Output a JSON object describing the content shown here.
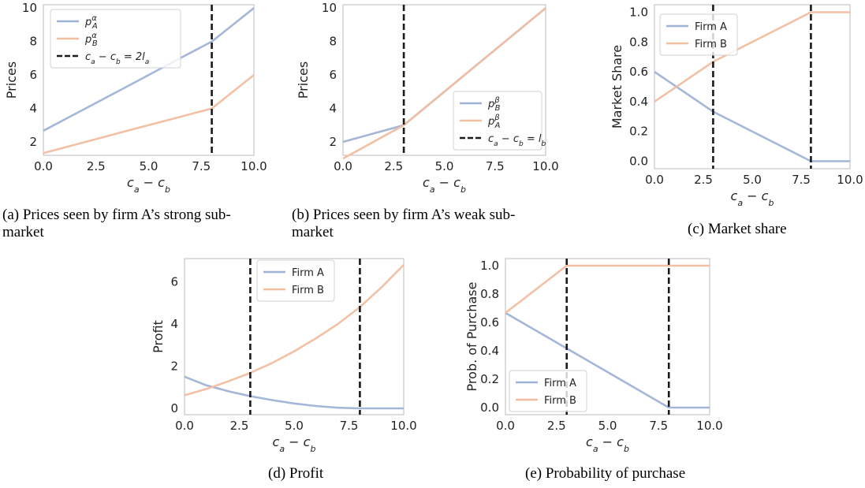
{
  "colors": {
    "firm_a": "#9fb3d6",
    "firm_b": "#f1bea0",
    "threshold": "#1a1a1a"
  },
  "captions": [
    "(a) Prices seen by firm A’s strong sub-",
    "market",
    "(b) Prices seen by firm A’s weak sub-",
    "market",
    "(c) Market share",
    "(d) Profit",
    "(e) Probability of purchase"
  ],
  "chart_data": [
    {
      "type": "line",
      "xlabel": "c_a − c_b",
      "ylabel": "Prices",
      "xlim": [
        0,
        10
      ],
      "ylim": [
        1.2,
        10.2
      ],
      "xticks": [
        "0.0",
        "2.5",
        "5.0",
        "7.5",
        "10.0"
      ],
      "xtick_values": [
        0,
        2.5,
        5,
        7.5,
        10
      ],
      "yticks": [
        "2",
        "4",
        "6",
        "8",
        "10"
      ],
      "ytick_values": [
        2,
        4,
        6,
        8,
        10
      ],
      "legend": "top-left",
      "legend_entries": [
        {
          "symbol": "p",
          "sub": "A",
          "sup": "α",
          "style": "firm_a"
        },
        {
          "symbol": "p",
          "sub": "B",
          "sup": "α",
          "style": "firm_b"
        },
        {
          "label": "c_a − c_b = 2l_a",
          "style": "threshold"
        }
      ],
      "series": [
        {
          "style": "firm_a",
          "x": [
            0,
            2,
            4,
            6,
            8,
            9,
            10
          ],
          "y": [
            2.67,
            4.0,
            5.33,
            6.67,
            8.0,
            9.0,
            10.0
          ]
        },
        {
          "style": "firm_b",
          "x": [
            0,
            2,
            4,
            6,
            8,
            9,
            10
          ],
          "y": [
            1.33,
            2.0,
            2.67,
            3.33,
            4.0,
            5.0,
            6.0
          ]
        }
      ],
      "vlines": [
        8
      ]
    },
    {
      "type": "line",
      "xlabel": "c_a − c_b",
      "ylabel": "Prices",
      "xlim": [
        0,
        10
      ],
      "ylim": [
        1.2,
        10.2
      ],
      "xticks": [
        "0.0",
        "2.5",
        "5.0",
        "7.5",
        "10.0"
      ],
      "xtick_values": [
        0,
        2.5,
        5,
        7.5,
        10
      ],
      "yticks": [
        "2",
        "4",
        "6",
        "8",
        "10"
      ],
      "ytick_values": [
        2,
        4,
        6,
        8,
        10
      ],
      "legend": "lower-right",
      "legend_entries": [
        {
          "symbol": "p",
          "sub": "B",
          "sup": "β",
          "style": "firm_a"
        },
        {
          "symbol": "p",
          "sub": "A",
          "sup": "β",
          "style": "firm_b"
        },
        {
          "label": "c_a − c_b = l_b",
          "style": "threshold"
        }
      ],
      "series": [
        {
          "style": "firm_a",
          "x": [
            0,
            3,
            10
          ],
          "y": [
            2.0,
            3.0,
            10.0
          ]
        },
        {
          "style": "firm_b",
          "x": [
            0,
            3,
            10
          ],
          "y": [
            1.0,
            3.0,
            10.0
          ]
        }
      ],
      "vlines": [
        3
      ]
    },
    {
      "type": "line",
      "xlabel": "c_a − c_b",
      "ylabel": "Market Share",
      "xlim": [
        0,
        10
      ],
      "ylim": [
        -0.05,
        1.05
      ],
      "xticks": [
        "0.0",
        "2.5",
        "5.0",
        "7.5",
        "10.0"
      ],
      "xtick_values": [
        0,
        2.5,
        5,
        7.5,
        10
      ],
      "yticks": [
        "0.0",
        "0.2",
        "0.4",
        "0.6",
        "0.8",
        "1.0"
      ],
      "ytick_values": [
        0,
        0.2,
        0.4,
        0.6,
        0.8,
        1.0
      ],
      "legend": "top-left",
      "legend_entries": [
        {
          "label": "Firm A",
          "style": "firm_a"
        },
        {
          "label": "Firm B",
          "style": "firm_b"
        }
      ],
      "series": [
        {
          "name": "Firm A",
          "style": "firm_a",
          "x": [
            0,
            3,
            8,
            10
          ],
          "y": [
            0.6,
            0.333,
            0.0,
            0.0
          ]
        },
        {
          "name": "Firm B",
          "style": "firm_b",
          "x": [
            0,
            3,
            8,
            10
          ],
          "y": [
            0.4,
            0.667,
            1.0,
            1.0
          ]
        }
      ],
      "vlines": [
        3,
        8
      ]
    },
    {
      "type": "line",
      "xlabel": "c_a − c_b",
      "ylabel": "Profit",
      "xlim": [
        0,
        10
      ],
      "ylim": [
        -0.3,
        7.1
      ],
      "xticks": [
        "0.0",
        "2.5",
        "5.0",
        "7.5",
        "10.0"
      ],
      "xtick_values": [
        0,
        2.5,
        5,
        7.5,
        10
      ],
      "yticks": [
        "0",
        "2",
        "4",
        "6"
      ],
      "ytick_values": [
        0,
        2,
        4,
        6
      ],
      "legend": "top-center",
      "legend_entries": [
        {
          "label": "Firm A",
          "style": "firm_a"
        },
        {
          "label": "Firm B",
          "style": "firm_b"
        }
      ],
      "series": [
        {
          "name": "Firm A",
          "style": "firm_a",
          "x": [
            0,
            1,
            2,
            3,
            4,
            5,
            6,
            7,
            8,
            9,
            10
          ],
          "y": [
            1.5,
            1.09,
            0.81,
            0.58,
            0.39,
            0.23,
            0.11,
            0.03,
            0.0,
            0.0,
            0.0
          ]
        },
        {
          "name": "Firm B",
          "style": "firm_b",
          "x": [
            0,
            1,
            2,
            3,
            4,
            5,
            6,
            7,
            8,
            9,
            10
          ],
          "y": [
            0.62,
            0.92,
            1.28,
            1.68,
            2.15,
            2.7,
            3.32,
            4.0,
            4.8,
            5.75,
            6.8
          ]
        }
      ],
      "vlines": [
        3,
        8
      ]
    },
    {
      "type": "line",
      "xlabel": "c_a − c_b",
      "ylabel": "Prob. of Purchase",
      "xlim": [
        0,
        10
      ],
      "ylim": [
        -0.05,
        1.05
      ],
      "xticks": [
        "0.0",
        "2.5",
        "5.0",
        "7.5",
        "10.0"
      ],
      "xtick_values": [
        0,
        2.5,
        5,
        7.5,
        10
      ],
      "yticks": [
        "0.0",
        "0.2",
        "0.4",
        "0.6",
        "0.8",
        "1.0"
      ],
      "ytick_values": [
        0,
        0.2,
        0.4,
        0.6,
        0.8,
        1.0
      ],
      "legend": "bottom-left",
      "legend_entries": [
        {
          "label": "Firm A",
          "style": "firm_a"
        },
        {
          "label": "Firm B",
          "style": "firm_b"
        }
      ],
      "series": [
        {
          "name": "Firm A",
          "style": "firm_a",
          "x": [
            0,
            3,
            8,
            10
          ],
          "y": [
            0.667,
            0.417,
            0.0,
            0.0
          ]
        },
        {
          "name": "Firm B",
          "style": "firm_b",
          "x": [
            0,
            3,
            8,
            10
          ],
          "y": [
            0.667,
            1.0,
            1.0,
            1.0
          ]
        }
      ],
      "vlines": [
        3,
        8
      ]
    }
  ]
}
